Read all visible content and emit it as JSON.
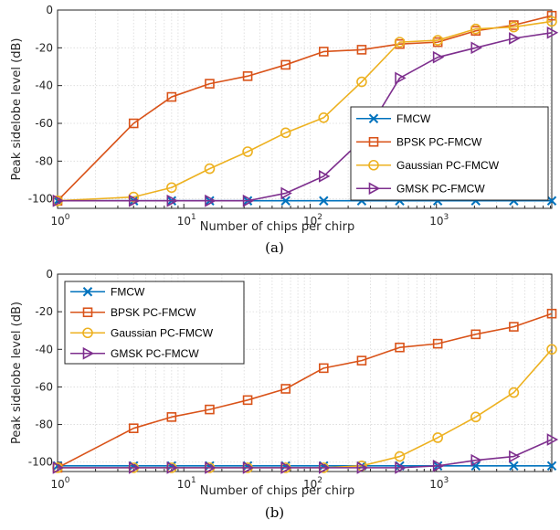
{
  "chart_data": [
    {
      "type": "line",
      "caption": "(a)",
      "xlabel": "Number of chips per chirp",
      "ylabel": "Peak sidelobe level (dB)",
      "xscale": "log",
      "xlim": [
        1,
        8192
      ],
      "ylim": [
        -105,
        0
      ],
      "yticks": [
        0,
        -20,
        -40,
        -60,
        -80,
        -100
      ],
      "xticks": [
        1,
        10,
        100,
        1000
      ],
      "xtick_labels": [
        {
          "base": "10",
          "exp": "0"
        },
        {
          "base": "10",
          "exp": "1"
        },
        {
          "base": "10",
          "exp": "2"
        },
        {
          "base": "10",
          "exp": "3"
        }
      ],
      "grid": true,
      "legend_position": "bottom-right",
      "x": [
        1,
        4,
        8,
        16,
        32,
        64,
        128,
        256,
        512,
        1024,
        2048,
        4096,
        8192
      ],
      "series": [
        {
          "name": "FMCW",
          "color": "#0072BD",
          "marker": "x",
          "values": [
            -101,
            -101,
            -101,
            -101,
            -101,
            -101,
            -101,
            -101,
            -101,
            -101,
            -101,
            -101,
            -101
          ]
        },
        {
          "name": "BPSK PC-FMCW",
          "color": "#D95319",
          "marker": "square",
          "values": [
            -101,
            -60,
            -46,
            -39,
            -35,
            -29,
            -22,
            -21,
            -18,
            -17,
            -11,
            -8,
            -3
          ]
        },
        {
          "name": "Gaussian PC-FMCW",
          "color": "#EDB120",
          "marker": "circle",
          "values": [
            -101,
            -99,
            -94,
            -84,
            -75,
            -65,
            -57,
            -38,
            -17,
            -16,
            -10,
            -9,
            -6
          ]
        },
        {
          "name": "GMSK PC-FMCW",
          "color": "#7E2F8E",
          "marker": "triangle-right",
          "values": [
            -101,
            -101,
            -101,
            -101,
            -101,
            -97,
            -88,
            -69,
            -36,
            -25,
            -20,
            -15,
            -12
          ]
        }
      ]
    },
    {
      "type": "line",
      "caption": "(b)",
      "xlabel": "Number of chips per chirp",
      "ylabel": "Peak sidelobe level (dB)",
      "xscale": "log",
      "xlim": [
        1,
        8192
      ],
      "ylim": [
        -105,
        0
      ],
      "yticks": [
        0,
        -20,
        -40,
        -60,
        -80,
        -100
      ],
      "xticks": [
        1,
        10,
        100,
        1000
      ],
      "xtick_labels": [
        {
          "base": "10",
          "exp": "0"
        },
        {
          "base": "10",
          "exp": "1"
        },
        {
          "base": "10",
          "exp": "2"
        },
        {
          "base": "10",
          "exp": "3"
        }
      ],
      "grid": true,
      "legend_position": "top-left",
      "x": [
        1,
        4,
        8,
        16,
        32,
        64,
        128,
        256,
        512,
        1024,
        2048,
        4096,
        8192
      ],
      "series": [
        {
          "name": "FMCW",
          "color": "#0072BD",
          "marker": "x",
          "values": [
            -102,
            -102,
            -102,
            -102,
            -102,
            -102,
            -102,
            -102,
            -102,
            -102,
            -102,
            -102,
            -102
          ]
        },
        {
          "name": "BPSK PC-FMCW",
          "color": "#D95319",
          "marker": "square",
          "values": [
            -103,
            -82,
            -76,
            -72,
            -67,
            -61,
            -50,
            -46,
            -39,
            -37,
            -32,
            -28,
            -21
          ]
        },
        {
          "name": "Gaussian PC-FMCW",
          "color": "#EDB120",
          "marker": "circle",
          "values": [
            -103,
            -103,
            -103,
            -103,
            -103,
            -103,
            -103,
            -102,
            -97,
            -87,
            -76,
            -63,
            -40
          ]
        },
        {
          "name": "GMSK PC-FMCW",
          "color": "#7E2F8E",
          "marker": "triangle-right",
          "values": [
            -103,
            -103,
            -103,
            -103,
            -103,
            -103,
            -103,
            -103,
            -103,
            -102,
            -99,
            -97,
            -88
          ]
        }
      ]
    }
  ]
}
